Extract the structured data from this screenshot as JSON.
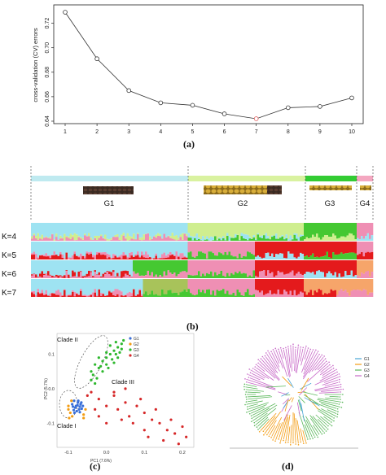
{
  "chart_data": [
    {
      "panel": "(a)",
      "type": "line",
      "ylabel": "cross-validation (CV) errors",
      "xlabel": "",
      "x": [
        1,
        2,
        3,
        4,
        5,
        6,
        7,
        8,
        9,
        10
      ],
      "y": [
        0.729,
        0.691,
        0.665,
        0.655,
        0.653,
        0.646,
        0.642,
        0.651,
        0.652,
        0.659
      ],
      "highlight_x": 7,
      "highlight_color": "#e06060",
      "ylim": [
        0.638,
        0.735
      ],
      "xticks": [
        "1",
        "2",
        "3",
        "4",
        "5",
        "6",
        "7",
        "8",
        "9",
        "10"
      ],
      "yticks": [
        "0.64",
        "0.66",
        "0.68",
        "0.70",
        "0.72"
      ],
      "ytick_values": [
        0.64,
        0.66,
        0.68,
        0.7,
        0.72
      ],
      "grid": false,
      "legend": "none"
    },
    {
      "panel": "(b)",
      "type": "bar",
      "description_groups": [
        "G1",
        "G2",
        "G3",
        "G4"
      ],
      "group_colors": [
        "#bfeaf0",
        "#d9f2a0",
        "#33cc33",
        "#f4a7c0"
      ],
      "rows": [
        "K=4",
        "K=5",
        "K=6",
        "K=7"
      ],
      "cluster_colors": [
        "#9ee3f2",
        "#cfee8f",
        "#45c832",
        "#ef8fb4",
        "#e41a1c",
        "#f6a56a",
        "#a8c35a"
      ]
    },
    {
      "panel": "(c)",
      "type": "scatter",
      "xlabel": "PC1 (7.6%)",
      "ylabel": "PC2 (5.7%)",
      "xticks": [
        "-0.1",
        "0.0",
        "0.1",
        "0.2"
      ],
      "xtick_values": [
        -0.1,
        0.0,
        0.1,
        0.2
      ],
      "yticks": [
        "-0.1",
        "0.0",
        "0.1"
      ],
      "ytick_values": [
        -0.1,
        0.0,
        0.1
      ],
      "xlim": [
        -0.13,
        0.23
      ],
      "ylim": [
        -0.17,
        0.16
      ],
      "legend": "top-right",
      "series": [
        {
          "name": "G1",
          "color": "#3a6fd8",
          "points": [
            [
              -0.085,
              -0.035
            ],
            [
              -0.08,
              -0.05
            ],
            [
              -0.075,
              -0.04
            ],
            [
              -0.072,
              -0.06
            ],
            [
              -0.068,
              -0.045
            ],
            [
              -0.082,
              -0.055
            ],
            [
              -0.09,
              -0.045
            ],
            [
              -0.078,
              -0.065
            ],
            [
              -0.07,
              -0.052
            ],
            [
              -0.086,
              -0.062
            ],
            [
              -0.074,
              -0.035
            ],
            [
              -0.065,
              -0.058
            ],
            [
              -0.088,
              -0.052
            ],
            [
              -0.076,
              -0.048
            ],
            [
              -0.066,
              -0.04
            ],
            [
              -0.084,
              -0.07
            ],
            [
              -0.062,
              -0.05
            ],
            [
              -0.07,
              -0.068
            ]
          ]
        },
        {
          "name": "G2",
          "color": "#f39c12",
          "points": [
            [
              -0.1,
              -0.05
            ],
            [
              -0.095,
              -0.07
            ],
            [
              -0.09,
              -0.08
            ],
            [
              -0.1,
              -0.06
            ],
            [
              -0.06,
              -0.075
            ],
            [
              -0.055,
              -0.06
            ],
            [
              -0.092,
              -0.035
            ],
            [
              -0.06,
              -0.085
            ],
            [
              -0.098,
              -0.085
            ]
          ]
        },
        {
          "name": "G3",
          "color": "#2eb82e",
          "points": [
            [
              -0.04,
              0.05
            ],
            [
              -0.03,
              0.07
            ],
            [
              -0.02,
              0.06
            ],
            [
              -0.01,
              0.08
            ],
            [
              0.0,
              0.09
            ],
            [
              0.01,
              0.1
            ],
            [
              0.02,
              0.11
            ],
            [
              0.03,
              0.12
            ],
            [
              0.04,
              0.13
            ],
            [
              -0.035,
              0.04
            ],
            [
              -0.02,
              0.09
            ],
            [
              0.0,
              0.07
            ],
            [
              0.015,
              0.085
            ],
            [
              0.025,
              0.1
            ],
            [
              0.035,
              0.105
            ],
            [
              0.045,
              0.14
            ],
            [
              -0.025,
              0.03
            ],
            [
              -0.01,
              0.05
            ],
            [
              0.005,
              0.06
            ],
            [
              0.02,
              0.075
            ],
            [
              0.03,
              0.09
            ],
            [
              0.04,
              0.115
            ],
            [
              -0.03,
              0.015
            ],
            [
              0.01,
              0.125
            ],
            [
              0.025,
              0.135
            ],
            [
              -0.015,
              0.065
            ],
            [
              0.0,
              0.105
            ],
            [
              -0.04,
              0.025
            ]
          ]
        },
        {
          "name": "G4",
          "color": "#d62728",
          "points": [
            [
              -0.05,
              -0.02
            ],
            [
              -0.03,
              -0.06
            ],
            [
              -0.02,
              -0.03
            ],
            [
              0.0,
              -0.05
            ],
            [
              0.02,
              -0.02
            ],
            [
              0.03,
              -0.06
            ],
            [
              0.05,
              -0.04
            ],
            [
              0.06,
              -0.08
            ],
            [
              0.08,
              -0.05
            ],
            [
              0.1,
              -0.07
            ],
            [
              0.12,
              -0.09
            ],
            [
              0.14,
              -0.1
            ],
            [
              0.16,
              -0.12
            ],
            [
              0.18,
              -0.13
            ],
            [
              0.2,
              -0.11
            ],
            [
              0.21,
              -0.14
            ],
            [
              0.15,
              -0.15
            ],
            [
              0.1,
              -0.12
            ],
            [
              0.07,
              -0.1
            ],
            [
              0.04,
              -0.09
            ],
            [
              0.0,
              -0.1
            ],
            [
              -0.02,
              -0.08
            ],
            [
              0.02,
              -0.01
            ],
            [
              0.05,
              0.0
            ],
            [
              0.09,
              -0.03
            ],
            [
              0.13,
              -0.06
            ],
            [
              0.17,
              -0.09
            ],
            [
              0.19,
              -0.16
            ],
            [
              0.11,
              -0.14
            ],
            [
              -0.04,
              -0.01
            ]
          ]
        }
      ],
      "annotations": [
        "Clade I",
        "Clade II",
        "Clade III"
      ]
    },
    {
      "panel": "(d)",
      "type": "tree",
      "legend": "right",
      "series": [
        {
          "name": "G1",
          "color": "#4aa6d6"
        },
        {
          "name": "G2",
          "color": "#f39c12"
        },
        {
          "name": "G3",
          "color": "#5cb85c"
        },
        {
          "name": "G4",
          "color": "#c86ac8"
        }
      ]
    }
  ],
  "labels": {
    "a": "(a)",
    "b": "(b)",
    "c": "(c)",
    "d": "(d)",
    "g1": "G1",
    "g2": "G2",
    "g3": "G3",
    "g4": "G4",
    "k4": "K=4",
    "k5": "K=5",
    "k6": "K=6",
    "k7": "K=7",
    "clade1": "Clade I",
    "clade2": "Clade II",
    "clade3": "Clade III"
  }
}
